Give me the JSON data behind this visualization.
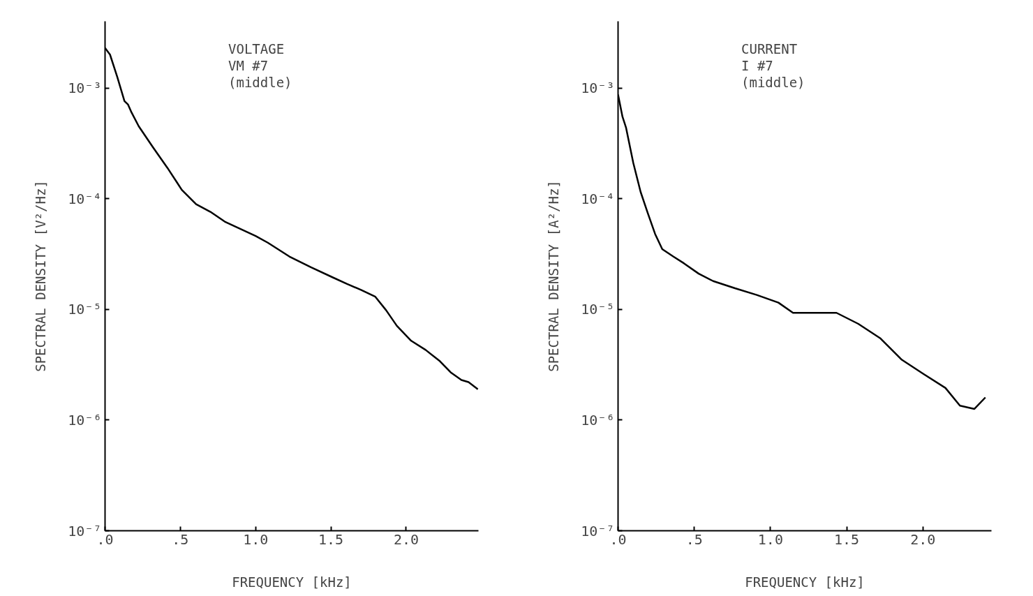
{
  "chart_data": [
    {
      "type": "line",
      "annotations": [
        "VOLTAGE",
        "VM #7",
        "(middle)"
      ],
      "xlabel": "FREQUENCY [kHz]",
      "ylabel": "SPECTRAL DENSITY [V²/Hz]",
      "log": "y",
      "grid": false,
      "marker": "none",
      "line_style": "solid",
      "xlim": [
        0,
        2.48
      ],
      "ylim": [
        1e-07,
        0.004
      ],
      "xticks": [
        {
          "value": 0,
          "label": ".0"
        },
        {
          "value": 0.5,
          "label": ".5"
        },
        {
          "value": 1,
          "label": "1.0"
        },
        {
          "value": 1.5,
          "label": "1.5"
        },
        {
          "value": 2,
          "label": "2.0"
        }
      ],
      "yticks": [
        {
          "value": 1e-07,
          "label": "10⁻⁷"
        },
        {
          "value": 1e-06,
          "label": "10⁻⁶"
        },
        {
          "value": 1e-05,
          "label": "10⁻⁵"
        },
        {
          "value": 0.0001,
          "label": "10⁻⁴"
        },
        {
          "value": 0.001,
          "label": "10⁻³"
        }
      ],
      "x": [
        0,
        0.033,
        0.081,
        0.129,
        0.152,
        0.176,
        0.224,
        0.319,
        0.414,
        0.51,
        0.605,
        0.7,
        0.795,
        0.89,
        1.0,
        1.081,
        1.224,
        1.367,
        1.51,
        1.605,
        1.7,
        1.795,
        1.867,
        1.938,
        2.033,
        2.129,
        2.224,
        2.295,
        2.367,
        2.414,
        2.476
      ],
      "series": [
        {
          "color": "#000000",
          "values": [
            0.0023,
            0.002,
            0.00126,
            0.00076,
            0.00071,
            0.0006,
            0.00045,
            0.00029,
            0.00019,
            0.00012,
            8.9e-05,
            7.6e-05,
            6.2e-05,
            5.4e-05,
            4.6e-05,
            4e-05,
            3e-05,
            2.4e-05,
            1.95e-05,
            1.7e-05,
            1.5e-05,
            1.3e-05,
            9.8e-06,
            7.1e-06,
            5.2e-06,
            4.3e-06,
            3.4e-06,
            2.7e-06,
            2.3e-06,
            2.2e-06,
            1.9e-06
          ]
        }
      ]
    },
    {
      "type": "line",
      "annotations": [
        "CURRENT",
        "I #7",
        "(middle)"
      ],
      "xlabel": "FREQUENCY [kHz]",
      "ylabel": "SPECTRAL DENSITY [A²/Hz]",
      "log": "y",
      "grid": false,
      "marker": "none",
      "line_style": "solid",
      "xlim": [
        0,
        2.45
      ],
      "ylim": [
        1e-07,
        0.004
      ],
      "xticks": [
        {
          "value": 0,
          "label": ".0"
        },
        {
          "value": 0.5,
          "label": ".5"
        },
        {
          "value": 1,
          "label": "1.0"
        },
        {
          "value": 1.5,
          "label": "1.5"
        },
        {
          "value": 2,
          "label": "2.0"
        }
      ],
      "yticks": [
        {
          "value": 1e-07,
          "label": "10⁻⁷"
        },
        {
          "value": 1e-06,
          "label": "10⁻⁶"
        },
        {
          "value": 1e-05,
          "label": "10⁻⁵"
        },
        {
          "value": 0.0001,
          "label": "10⁻⁴"
        },
        {
          "value": 0.001,
          "label": "10⁻³"
        }
      ],
      "x": [
        0,
        0.029,
        0.052,
        0.1,
        0.148,
        0.195,
        0.243,
        0.29,
        0.362,
        0.433,
        0.529,
        0.624,
        0.767,
        0.91,
        1.052,
        1.148,
        1.29,
        1.433,
        1.576,
        1.719,
        1.862,
        2.005,
        2.148,
        2.243,
        2.338,
        2.41
      ],
      "series": [
        {
          "color": "#000000",
          "values": [
            0.00087,
            0.00055,
            0.00044,
            0.00021,
            0.000115,
            7.4e-05,
            4.8e-05,
            3.5e-05,
            3e-05,
            2.6e-05,
            2.1e-05,
            1.8e-05,
            1.55e-05,
            1.35e-05,
            1.15e-05,
            9.3e-06,
            9.3e-06,
            9.3e-06,
            7.4e-06,
            5.5e-06,
            3.5e-06,
            2.6e-06,
            1.95e-06,
            1.35e-06,
            1.26e-06,
            1.6e-06
          ]
        }
      ]
    }
  ]
}
